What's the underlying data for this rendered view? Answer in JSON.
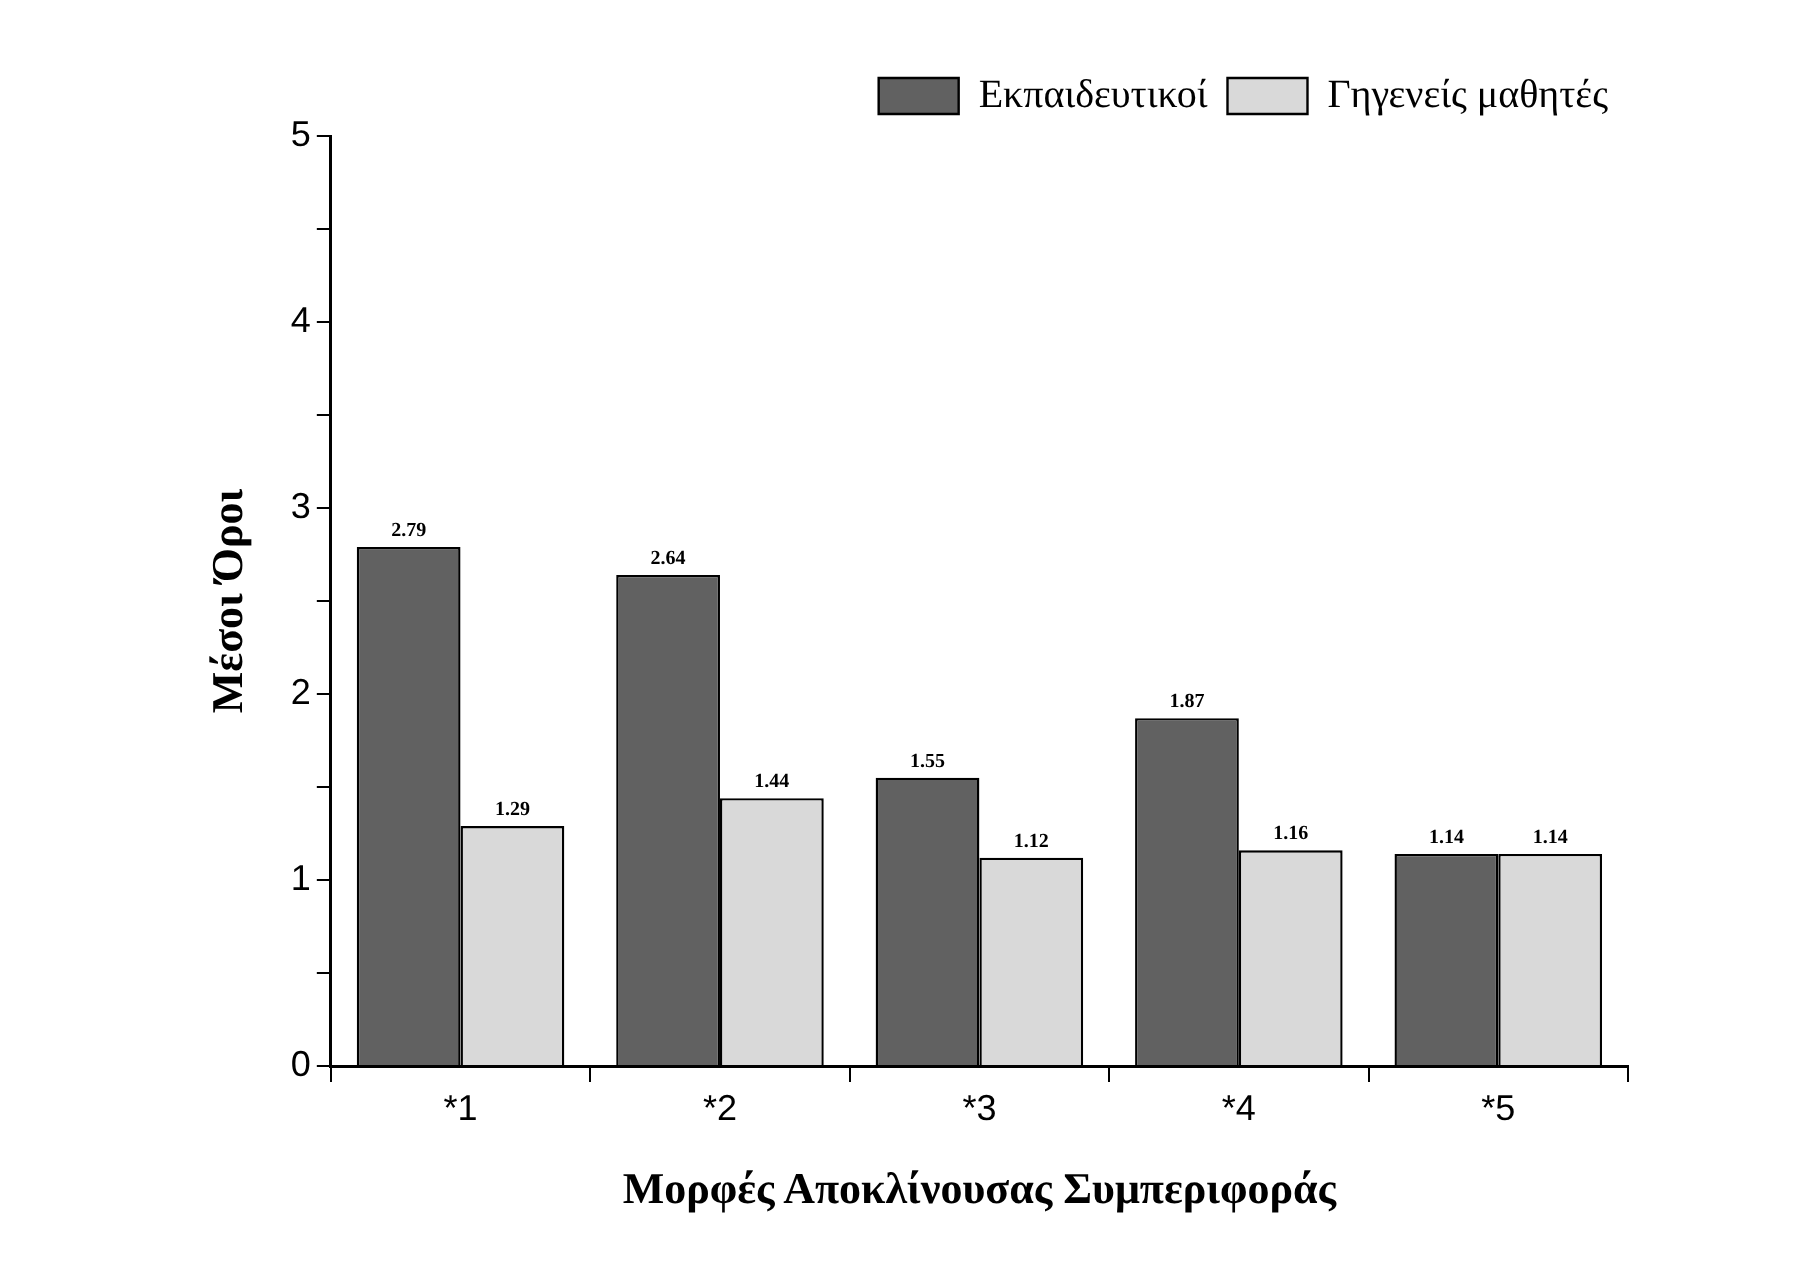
{
  "chart_data": {
    "type": "bar",
    "xlabel": "Μορφές Αποκλίνουσας Συμπεριφοράς",
    "ylabel": "Μέσοι Όροι",
    "categories": [
      "*1",
      "*2",
      "*3",
      "*4",
      "*5"
    ],
    "series": [
      {
        "name": "Εκπαιδευτικοί",
        "color": "#616161",
        "values": [
          2.79,
          2.64,
          1.55,
          1.87,
          1.14
        ]
      },
      {
        "name": "Γηγενείς μαθητές",
        "color": "#d9d9d9",
        "values": [
          1.29,
          1.44,
          1.12,
          1.16,
          1.14
        ]
      }
    ],
    "ylim": [
      0,
      5
    ],
    "yticks": [
      0,
      {
        "value": 0.5,
        "label": null
      },
      1,
      {
        "value": 1.5,
        "label": null
      },
      2,
      {
        "value": 2.5,
        "label": null
      },
      3,
      {
        "value": 3.5,
        "label": null
      },
      4,
      {
        "value": 4.5,
        "label": null
      },
      5
    ],
    "data_labels": true,
    "grid": false,
    "legend": "top right"
  }
}
